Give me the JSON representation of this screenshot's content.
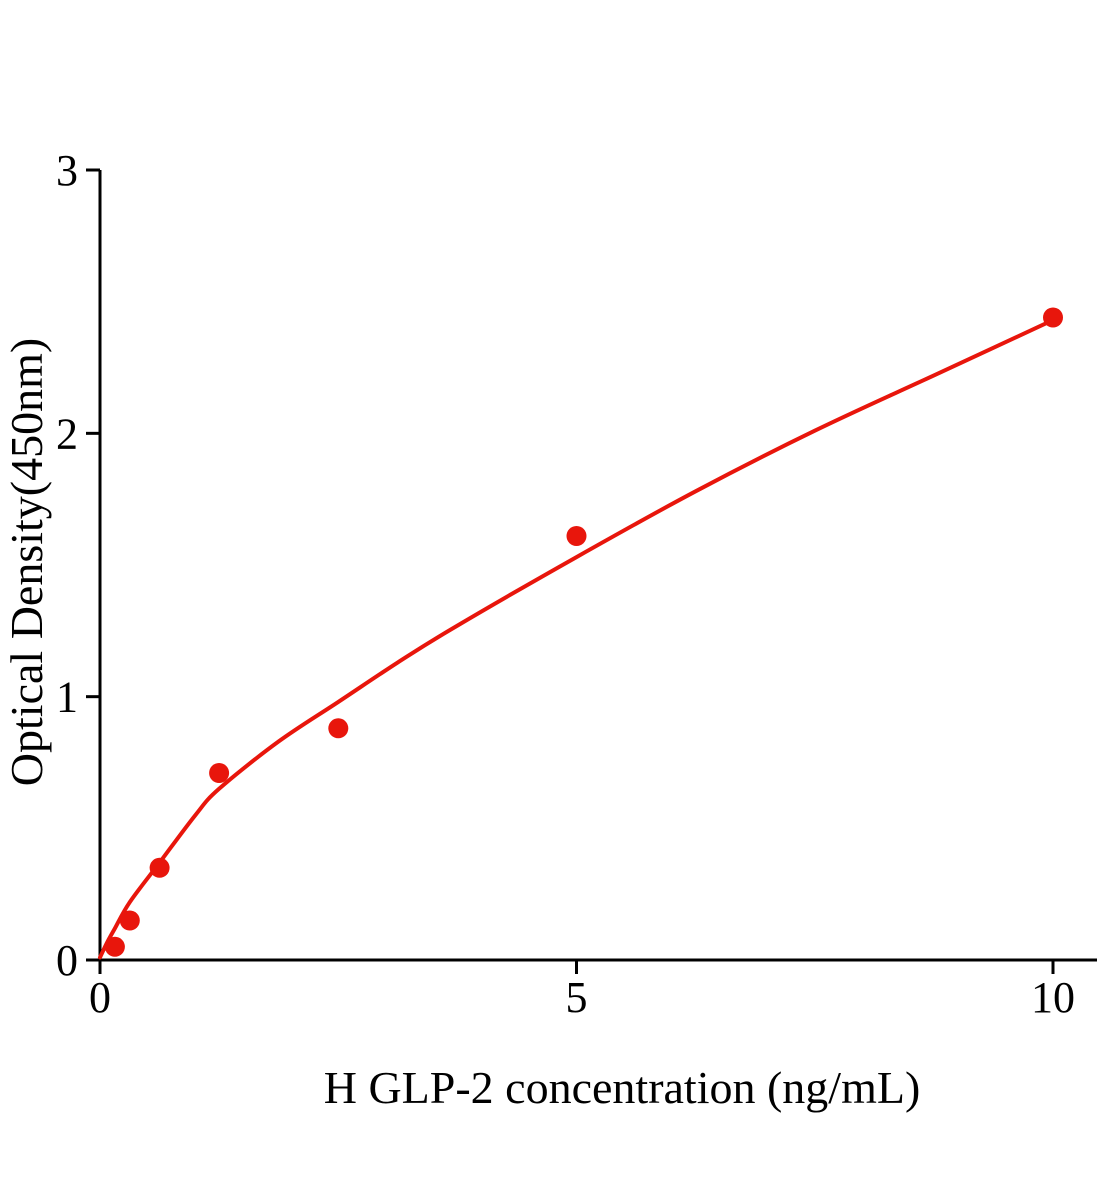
{
  "chart_data": {
    "type": "scatter",
    "title": "",
    "xlabel": "H GLP-2 concentration (ng/mL)",
    "ylabel": "Optical Density(450nm)",
    "xlim": [
      0,
      10
    ],
    "ylim": [
      0,
      3
    ],
    "xticks": [
      0,
      5,
      10
    ],
    "yticks": [
      0,
      1,
      2,
      3
    ],
    "xtick_labels": [
      "0",
      "5",
      "10"
    ],
    "ytick_labels": [
      "0",
      "1",
      "2",
      "3"
    ],
    "grid": false,
    "legend": "none",
    "points": {
      "x": [
        0.156,
        0.313,
        0.625,
        1.25,
        2.5,
        5,
        10
      ],
      "y": [
        0.05,
        0.15,
        0.35,
        0.71,
        0.88,
        1.61,
        2.44
      ]
    },
    "fit_curve": {
      "x": [
        0,
        0.08,
        0.156,
        0.313,
        0.625,
        1.0,
        1.25,
        1.875,
        2.5,
        3.125,
        3.75,
        5,
        6.25,
        7.5,
        8.75,
        10
      ],
      "y": [
        0.01,
        0.07,
        0.12,
        0.22,
        0.37,
        0.55,
        0.65,
        0.83,
        0.98,
        1.13,
        1.27,
        1.53,
        1.78,
        2.01,
        2.22,
        2.43
      ]
    },
    "colors": {
      "line": "#e8160c",
      "point": "#e8160c",
      "axis": "#000000"
    }
  }
}
